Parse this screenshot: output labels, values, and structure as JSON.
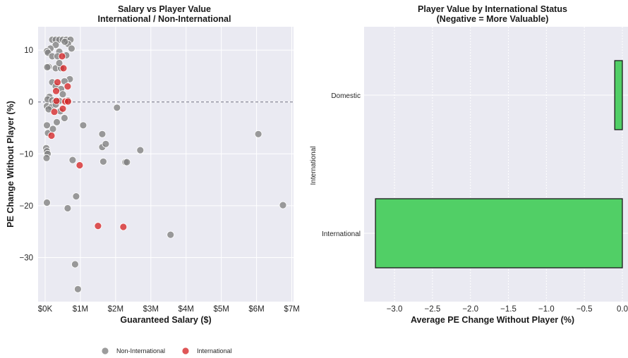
{
  "chart_data": [
    {
      "type": "scatter",
      "title": "Salary vs Player Value",
      "subtitle": "International / Non-International",
      "xlabel": "Guaranteed Salary ($)",
      "ylabel": "PE Change Without Player (%)",
      "xlim": [
        -200000,
        7050000
      ],
      "ylim": [
        -38.5,
        14.5
      ],
      "x_ticks": [
        0,
        1000000,
        2000000,
        3000000,
        4000000,
        5000000,
        6000000,
        7000000
      ],
      "x_tick_labels": [
        "$0K",
        "$1M",
        "$2M",
        "$3M",
        "$4M",
        "$5M",
        "$6M",
        "$7M"
      ],
      "y_ticks": [
        10,
        0,
        -10,
        -20,
        -30
      ],
      "y_tick_labels": [
        "10",
        "0",
        "−10",
        "−20",
        "−30"
      ],
      "reference_line_y": 0,
      "grid": true,
      "legend_position": "bottom",
      "series": [
        {
          "name": "Non-International",
          "color": "#808080",
          "points": [
            [
              200000,
              12.0
            ],
            [
              300000,
              12.0
            ],
            [
              400000,
              12.0
            ],
            [
              500000,
              12.0
            ],
            [
              600000,
              12.0
            ],
            [
              720000,
              12.0
            ],
            [
              650000,
              11.2
            ],
            [
              560000,
              11.6
            ],
            [
              300000,
              11.0
            ],
            [
              150000,
              10.3
            ],
            [
              750000,
              10.3
            ],
            [
              50000,
              9.8
            ],
            [
              80000,
              9.5
            ],
            [
              400000,
              9.7
            ],
            [
              600000,
              9.0
            ],
            [
              200000,
              8.8
            ],
            [
              350000,
              8.8
            ],
            [
              100000,
              6.8
            ],
            [
              60000,
              6.7
            ],
            [
              300000,
              6.5
            ],
            [
              450000,
              6.5
            ],
            [
              400000,
              7.5
            ],
            [
              700000,
              4.4
            ],
            [
              550000,
              4.0
            ],
            [
              200000,
              3.8
            ],
            [
              300000,
              3.0
            ],
            [
              450000,
              2.5
            ],
            [
              500000,
              1.5
            ],
            [
              120000,
              1.0
            ],
            [
              70000,
              0.5
            ],
            [
              200000,
              0.3
            ],
            [
              280000,
              0.0
            ],
            [
              400000,
              0.2
            ],
            [
              650000,
              0.3
            ],
            [
              50000,
              -0.8
            ],
            [
              170000,
              -1.0
            ],
            [
              100000,
              -1.4
            ],
            [
              300000,
              -0.5
            ],
            [
              430000,
              -1.8
            ],
            [
              330000,
              -3.9
            ],
            [
              550000,
              -3.1
            ],
            [
              50000,
              -4.5
            ],
            [
              80000,
              -6.0
            ],
            [
              220000,
              -5.2
            ],
            [
              1080000,
              -4.5
            ],
            [
              1620000,
              -6.2
            ],
            [
              2040000,
              -1.1
            ],
            [
              1620000,
              -8.7
            ],
            [
              1720000,
              -8.1
            ],
            [
              2700000,
              -9.3
            ],
            [
              6050000,
              -6.2
            ],
            [
              30000,
              -8.9
            ],
            [
              50000,
              -9.5
            ],
            [
              70000,
              -10.0
            ],
            [
              40000,
              -10.8
            ],
            [
              780000,
              -11.2
            ],
            [
              1650000,
              -11.5
            ],
            [
              2280000,
              -11.6
            ],
            [
              2320000,
              -11.6
            ],
            [
              50000,
              -19.4
            ],
            [
              880000,
              -18.2
            ],
            [
              640000,
              -20.5
            ],
            [
              6750000,
              -19.9
            ],
            [
              3560000,
              -25.6
            ],
            [
              850000,
              -31.3
            ],
            [
              930000,
              -36.1
            ]
          ]
        },
        {
          "name": "International",
          "color": "#d62728",
          "points": [
            [
              480000,
              8.8
            ],
            [
              520000,
              6.5
            ],
            [
              350000,
              3.8
            ],
            [
              310000,
              2.1
            ],
            [
              640000,
              3.0
            ],
            [
              320000,
              0.2
            ],
            [
              570000,
              0.1
            ],
            [
              650000,
              0.1
            ],
            [
              500000,
              -1.3
            ],
            [
              260000,
              -1.9
            ],
            [
              180000,
              -6.5
            ],
            [
              980000,
              -12.2
            ],
            [
              1500000,
              -23.9
            ],
            [
              2220000,
              -24.1
            ]
          ]
        }
      ]
    },
    {
      "type": "bar",
      "orientation": "horizontal",
      "title": "Player Value by International Status",
      "subtitle": "(Negative = More Valuable)",
      "xlabel": "Average PE Change Without Player (%)",
      "ylabel": "International",
      "categories": [
        "Domestic",
        "International"
      ],
      "values": [
        -0.1,
        -3.25
      ],
      "xlim": [
        -3.4,
        0.0
      ],
      "x_ticks": [
        -3.0,
        -2.5,
        -2.0,
        -1.5,
        -1.0,
        -0.5,
        0.0
      ],
      "x_tick_labels": [
        "−3.0",
        "−2.5",
        "−2.0",
        "−1.5",
        "−1.0",
        "−0.5",
        "0.0"
      ],
      "bar_color": "#51cf66",
      "edge_color": "#1a1a1a",
      "grid": true
    }
  ]
}
